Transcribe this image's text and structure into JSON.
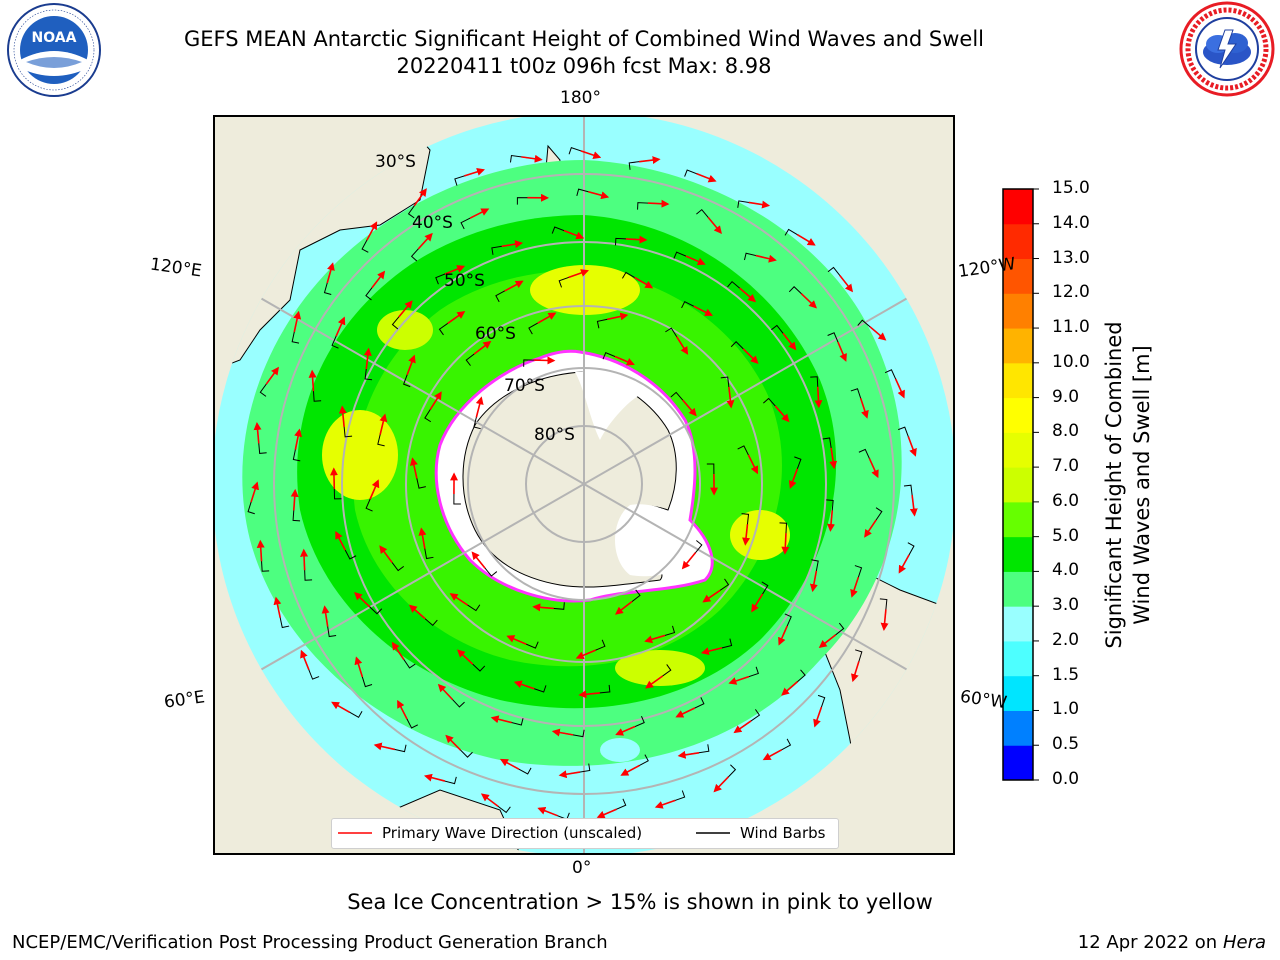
{
  "title": "GEFS MEAN Antarctic Significant Height of Combined Wind Waves and Swell",
  "subtitle": "20220411 t00z 096h fcst   Max: 8.98",
  "noaa_logo": {
    "text": "NOAA",
    "ring_text": "NATIONAL OCEANIC AND ATMOSPHERIC ADMINISTRATION · U.S. DEPARTMENT OF COMMERCE"
  },
  "nws_logo": {
    "ring_text": "NATIONAL WEATHER SERVICE"
  },
  "longitude_labels": {
    "top": "180°",
    "bottom": "0°",
    "upper_left": "120°E",
    "upper_right": "120°W",
    "lower_left": "60°E",
    "lower_right": "60°W"
  },
  "latitude_labels": [
    "30°S",
    "40°S",
    "50°S",
    "60°S",
    "70°S",
    "80°S"
  ],
  "legend": {
    "wave_label": "Primary Wave Direction (unscaled)",
    "wind_label": "Wind Barbs"
  },
  "colorbar": {
    "label_line1": "Significant Height of Combined",
    "label_line2": "Wind Waves and Swell [m]",
    "ticks": [
      "0.0",
      "0.5",
      "1.0",
      "1.5",
      "2.0",
      "3.0",
      "4.0",
      "5.0",
      "6.0",
      "7.0",
      "8.0",
      "9.0",
      "10.0",
      "11.0",
      "12.0",
      "13.0",
      "14.0",
      "15.0"
    ],
    "colors": [
      "#0000ff",
      "#0080ff",
      "#00e5ff",
      "#4dffff",
      "#99ffff",
      "#4dff80",
      "#00e600",
      "#66ff00",
      "#ccff00",
      "#e6ff00",
      "#ffff00",
      "#ffe600",
      "#ffb300",
      "#ff8000",
      "#ff5500",
      "#ff2a00",
      "#ff0000"
    ]
  },
  "caption": "Sea Ice Concentration > 15% is shown in pink to yellow",
  "footer_left": "NCEP/EMC/Verification Post Processing Product Generation Branch",
  "footer_right_date": "12 Apr 2022 on ",
  "footer_right_machine": "Hera",
  "colors": {
    "land": "#eeecdc",
    "ocean_low": "#99ffff",
    "ocean_mid": "#4dff80",
    "ocean_high": "#00e600",
    "peak": "#ffff00",
    "arrow": "#ff0000",
    "ice_edge": "#ff33ff",
    "graticule": "#b4b4b4"
  }
}
